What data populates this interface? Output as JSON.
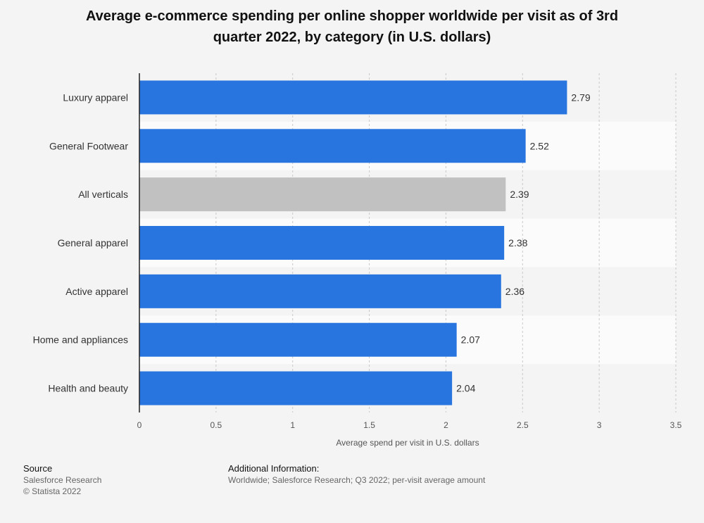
{
  "chart_data": {
    "type": "bar",
    "orientation": "horizontal",
    "title_lines": [
      "Average e-commerce spending per online shopper worldwide per visit as of 3rd",
      "quarter 2022, by category (in U.S. dollars)"
    ],
    "categories": [
      "Luxury apparel",
      "General Footwear",
      "All verticals",
      "General apparel",
      "Active apparel",
      "Home and appliances",
      "Health and beauty"
    ],
    "values": [
      2.79,
      2.52,
      2.39,
      2.38,
      2.36,
      2.07,
      2.04
    ],
    "value_labels": [
      "2.79",
      "2.52",
      "2.39",
      "2.38",
      "2.36",
      "2.07",
      "2.04"
    ],
    "highlight_category": "All verticals",
    "xlabel": "Average spend per visit in U.S. dollars",
    "ylabel": "",
    "xlim": [
      0,
      3.5
    ],
    "x_ticks": [
      0,
      0.5,
      1,
      1.5,
      2,
      2.5,
      3,
      3.5
    ],
    "x_tick_labels": [
      "0",
      "0.5",
      "1",
      "1.5",
      "2",
      "2.5",
      "3",
      "3.5"
    ],
    "grid": true,
    "colors": {
      "bar": "#2875e0",
      "highlight_bar": "#c1c1c1",
      "band": "#fbfbfb",
      "grid": "#c9c9c9",
      "axis": "#222222"
    }
  },
  "footer": {
    "source_heading": "Source",
    "source_name": "Salesforce Research",
    "copyright": "© Statista 2022",
    "info_heading": "Additional Information:",
    "info_text": "Worldwide; Salesforce Research; Q3 2022; per-visit average amount"
  }
}
